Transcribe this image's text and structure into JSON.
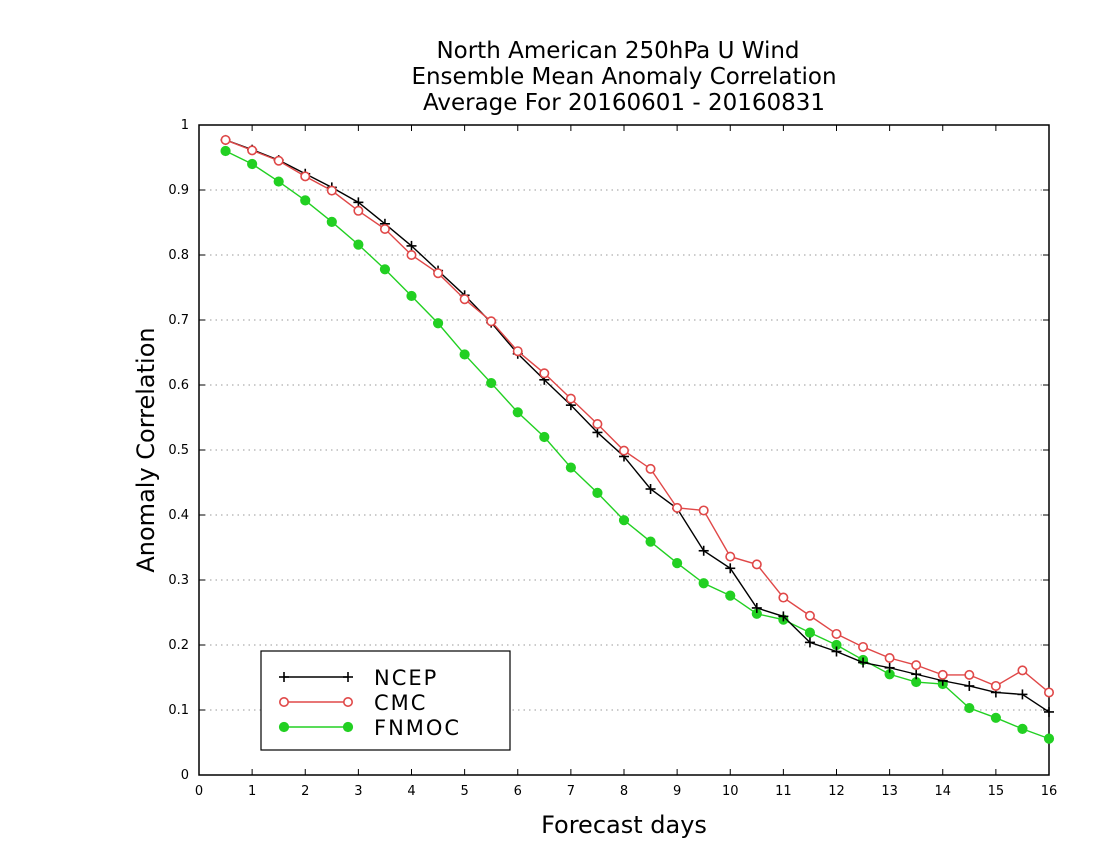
{
  "chart_data": {
    "type": "line",
    "title": [
      "North American 250hPa U Wind",
      "Ensemble Mean Anomaly Correlation",
      "Average For 20160601 - 20160831"
    ],
    "xlabel": "Forecast days",
    "ylabel": "Anomaly Correlation",
    "xlim": [
      0,
      16
    ],
    "ylim": [
      0,
      1
    ],
    "xticks": [
      "0",
      "1",
      "2",
      "3",
      "4",
      "5",
      "6",
      "7",
      "8",
      "9",
      "10",
      "11",
      "12",
      "13",
      "14",
      "15",
      "16"
    ],
    "yticks": [
      "0",
      "0.1",
      "0.2",
      "0.3",
      "0.4",
      "0.5",
      "0.6",
      "0.7",
      "0.8",
      "0.9",
      "1"
    ],
    "grid": "horizontal-dotted",
    "legend_position": "bottom-left",
    "x": [
      0.5,
      1,
      1.5,
      2,
      2.5,
      3,
      3.5,
      4,
      4.5,
      5,
      5.5,
      6,
      6.5,
      7,
      7.5,
      8,
      8.5,
      9,
      9.5,
      10,
      10.5,
      11,
      11.5,
      12,
      12.5,
      13,
      13.5,
      14,
      14.5,
      15,
      15.5,
      16
    ],
    "series": [
      {
        "name": "NCEP",
        "color": "#000000",
        "marker": "plus",
        "values": [
          0.977,
          0.962,
          0.946,
          0.925,
          0.904,
          0.881,
          0.848,
          0.814,
          0.776,
          0.738,
          0.696,
          0.648,
          0.608,
          0.569,
          0.527,
          0.49,
          0.44,
          0.41,
          0.345,
          0.318,
          0.257,
          0.244,
          0.204,
          0.19,
          0.173,
          0.165,
          0.155,
          0.145,
          0.137,
          0.127,
          0.124,
          0.097
        ]
      },
      {
        "name": "CMC",
        "color": "#e04848",
        "marker": "open-circle",
        "values": [
          0.977,
          0.961,
          0.945,
          0.921,
          0.899,
          0.868,
          0.84,
          0.8,
          0.772,
          0.732,
          0.698,
          0.652,
          0.618,
          0.579,
          0.54,
          0.499,
          0.471,
          0.411,
          0.407,
          0.336,
          0.324,
          0.273,
          0.245,
          0.217,
          0.197,
          0.18,
          0.169,
          0.154,
          0.154,
          0.137,
          0.161,
          0.127
        ]
      },
      {
        "name": "FNMOC",
        "color": "#22d022",
        "marker": "filled-circle",
        "values": [
          0.96,
          0.94,
          0.913,
          0.884,
          0.851,
          0.816,
          0.778,
          0.737,
          0.695,
          0.647,
          0.603,
          0.558,
          0.52,
          0.473,
          0.434,
          0.392,
          0.359,
          0.326,
          0.295,
          0.276,
          0.248,
          0.239,
          0.219,
          0.2,
          0.177,
          0.155,
          0.143,
          0.14,
          0.103,
          0.088,
          0.071,
          0.056
        ]
      }
    ]
  }
}
